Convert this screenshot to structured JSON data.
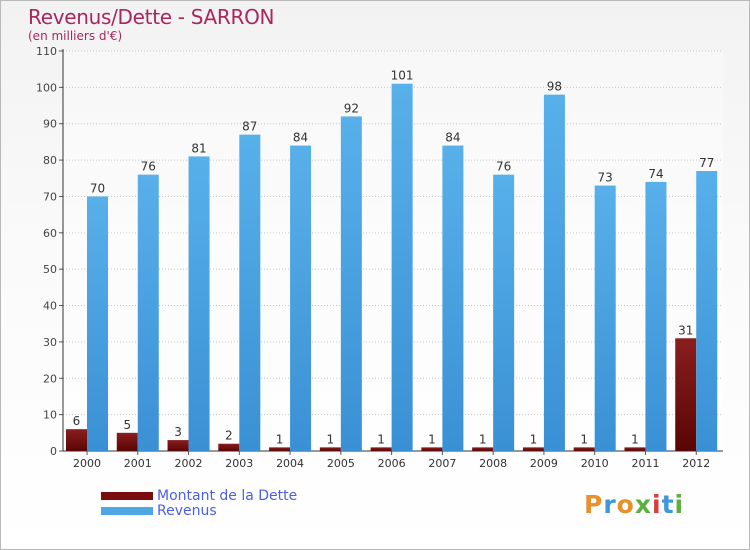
{
  "chart_data": {
    "type": "bar",
    "title": "Revenus/Dette - SARRON",
    "subtitle": "(en milliers d'€)",
    "categories": [
      "2000",
      "2001",
      "2002",
      "2003",
      "2004",
      "2005",
      "2006",
      "2007",
      "2008",
      "2009",
      "2010",
      "2011",
      "2012"
    ],
    "series": [
      {
        "name": "Montant de la Dette",
        "color": "#7a0d0d",
        "values": [
          6,
          5,
          3,
          2,
          1,
          1,
          1,
          1,
          1,
          1,
          1,
          1,
          31
        ]
      },
      {
        "name": "Revenus",
        "color": "#4ea6e5",
        "values": [
          70,
          76,
          81,
          87,
          84,
          92,
          101,
          84,
          76,
          98,
          73,
          74,
          77
        ]
      }
    ],
    "yticks": [
      "0",
      "10",
      "20",
      "30",
      "40",
      "50",
      "60",
      "70",
      "80",
      "90",
      "100",
      "110"
    ],
    "ylim": [
      0,
      110
    ],
    "grid": true,
    "legend": "bottom-left"
  },
  "logo": {
    "letters": [
      "P",
      "r",
      "o",
      "x",
      "i",
      "t",
      "i"
    ],
    "colors": [
      "#e8902b",
      "#3c98d8",
      "#e8902b",
      "#5cb03d",
      "#d83c3c",
      "#3c98d8",
      "#5cb03d"
    ]
  }
}
